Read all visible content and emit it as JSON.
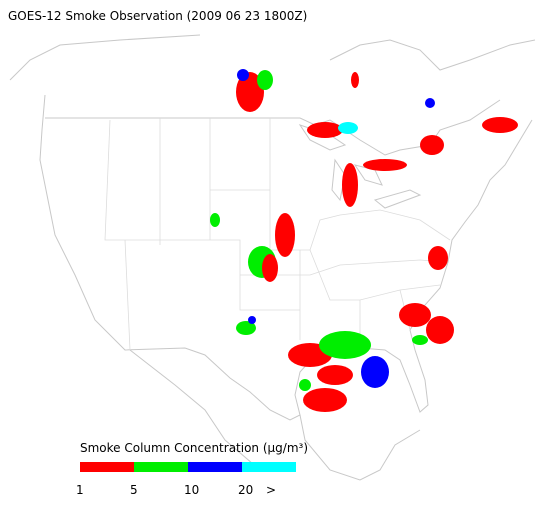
{
  "title": "GOES-12 Smoke Observation (2009 06 23  1800Z)",
  "legend": {
    "title": "Smoke Column Concentration (μg/m³)",
    "colors": [
      "#ff0000",
      "#00ee00",
      "#0000ff",
      "#00ffff"
    ],
    "labels": [
      "1",
      "5",
      "10",
      "20",
      ">"
    ]
  }
}
